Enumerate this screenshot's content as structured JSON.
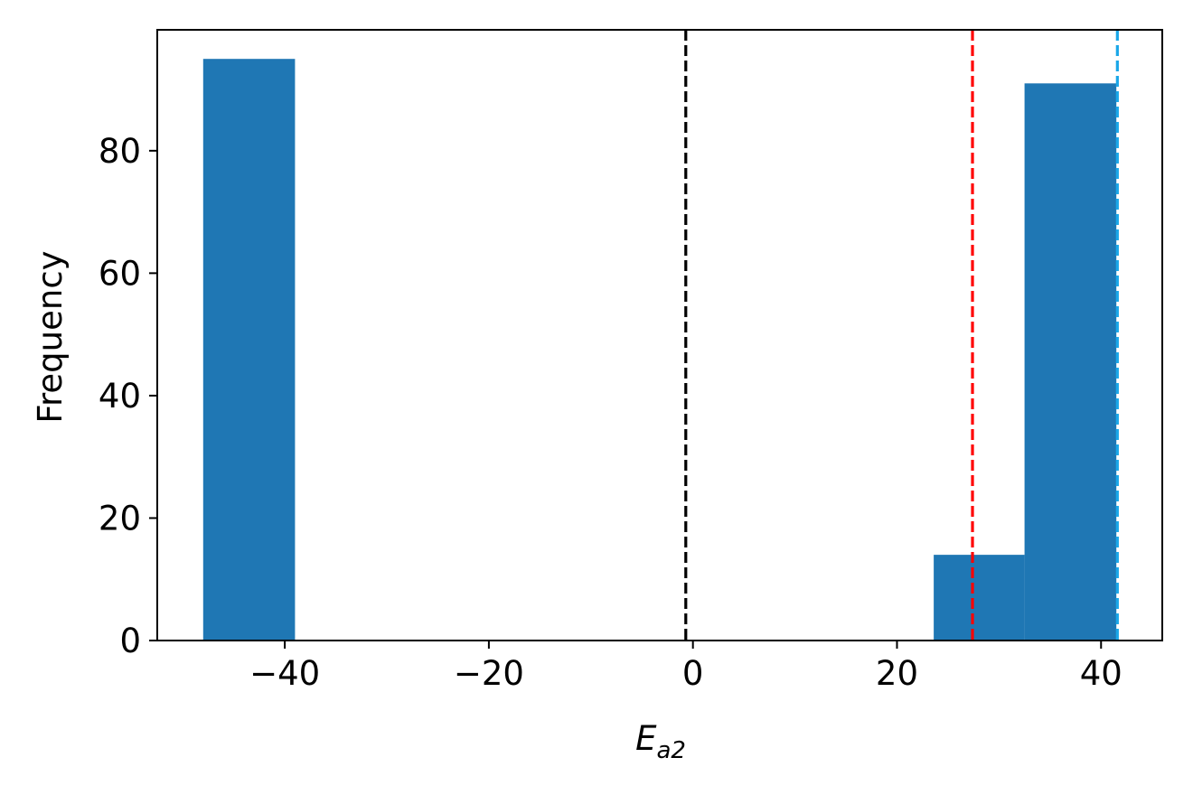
{
  "chart_data": {
    "type": "bar",
    "subtype": "histogram",
    "title": "",
    "xlabel_main": "E",
    "xlabel_sub": "a2",
    "ylabel": "Frequency",
    "xlim": [
      -52.5,
      46.0
    ],
    "ylim": [
      0,
      99.75
    ],
    "x_ticks": [
      -40,
      -20,
      0,
      20,
      40
    ],
    "x_tick_labels": [
      "−40",
      "−20",
      "0",
      "20",
      "40"
    ],
    "y_ticks": [
      0,
      20,
      40,
      60,
      80
    ],
    "y_tick_labels": [
      "0",
      "20",
      "40",
      "60",
      "80"
    ],
    "grid": false,
    "legend": null,
    "bar_color": "#1f77b4",
    "bins": [
      {
        "x0": -48.0,
        "x1": -39.0,
        "count": 95
      },
      {
        "x0": -39.0,
        "x1": -30.0,
        "count": 0
      },
      {
        "x0": -30.0,
        "x1": -21.0,
        "count": 0
      },
      {
        "x0": -21.0,
        "x1": -12.0,
        "count": 0
      },
      {
        "x0": -12.0,
        "x1": -3.0,
        "count": 0
      },
      {
        "x0": -3.0,
        "x1": 6.0,
        "count": 0
      },
      {
        "x0": 6.0,
        "x1": 15.0,
        "count": 0
      },
      {
        "x0": 15.0,
        "x1": 23.6,
        "count": 0
      },
      {
        "x0": 23.6,
        "x1": 32.5,
        "count": 14
      },
      {
        "x0": 32.5,
        "x1": 41.5,
        "count": 91
      }
    ],
    "vlines": [
      {
        "x": -0.7,
        "color": "#000000",
        "style": "dashed"
      },
      {
        "x": 27.4,
        "color": "#ff0000",
        "style": "dashed"
      },
      {
        "x": 41.6,
        "color": "#1aa7e8",
        "style": "dashed"
      }
    ]
  }
}
